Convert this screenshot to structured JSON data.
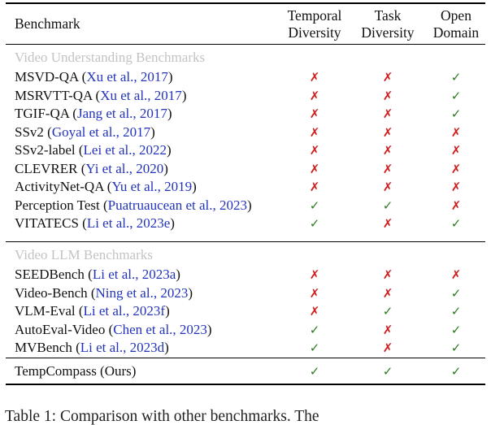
{
  "table": {
    "header": {
      "benchmark": "Benchmark",
      "col_temporal": {
        "line1": "Temporal",
        "line2": "Diversity"
      },
      "col_task": {
        "line1": "Task",
        "line2": "Diversity"
      },
      "col_open": {
        "line1": "Open",
        "line2": "Domain"
      }
    },
    "sections": [
      {
        "title": "Video Understanding Benchmarks",
        "rows": [
          {
            "prefix": "MSVD-QA (",
            "citation": "Xu et al., 2017",
            "suffix": ")",
            "marks": [
              "no",
              "no",
              "yes"
            ]
          },
          {
            "prefix": "MSRVTT-QA (",
            "citation": "Xu et al., 2017",
            "suffix": ")",
            "marks": [
              "no",
              "no",
              "yes"
            ]
          },
          {
            "prefix": "TGIF-QA (",
            "citation": "Jang et al., 2017",
            "suffix": ")",
            "marks": [
              "no",
              "no",
              "yes"
            ]
          },
          {
            "prefix": "SSv2 (",
            "citation": "Goyal et al., 2017",
            "suffix": ")",
            "marks": [
              "no",
              "no",
              "no"
            ]
          },
          {
            "prefix": "SSv2-label (",
            "citation": "Lei et al., 2022",
            "suffix": ")",
            "marks": [
              "no",
              "no",
              "no"
            ]
          },
          {
            "prefix": "CLEVRER (",
            "citation": "Yi et al., 2020",
            "suffix": ")",
            "marks": [
              "no",
              "no",
              "no"
            ]
          },
          {
            "prefix": "ActivityNet-QA (",
            "citation": "Yu et al., 2019",
            "suffix": ")",
            "marks": [
              "no",
              "no",
              "no"
            ]
          },
          {
            "prefix": "Perception Test (",
            "citation": "Puatruaucean et al., 2023",
            "suffix": ")",
            "marks": [
              "yes",
              "yes",
              "no"
            ]
          },
          {
            "prefix": "VITATECS (",
            "citation": "Li et al., 2023e",
            "suffix": ")",
            "marks": [
              "yes",
              "no",
              "yes"
            ]
          }
        ]
      },
      {
        "title": "Video LLM Benchmarks",
        "rows": [
          {
            "prefix": "SEEDBench (",
            "citation": "Li et al., 2023a",
            "suffix": ")",
            "marks": [
              "no",
              "no",
              "no"
            ]
          },
          {
            "prefix": "Video-Bench (",
            "citation": "Ning et al., 2023",
            "suffix": ")",
            "marks": [
              "no",
              "no",
              "yes"
            ]
          },
          {
            "prefix": "VLM-Eval (",
            "citation": "Li et al., 2023f",
            "suffix": ")",
            "marks": [
              "no",
              "yes",
              "yes"
            ]
          },
          {
            "prefix": "AutoEval-Video (",
            "citation": "Chen et al., 2023",
            "suffix": ")",
            "marks": [
              "yes",
              "no",
              "yes"
            ]
          },
          {
            "prefix": "MVBench (",
            "citation": "Li et al., 2023d",
            "suffix": ")",
            "marks": [
              "yes",
              "no",
              "yes"
            ]
          }
        ]
      }
    ],
    "final_row": {
      "label": "TempCompass (Ours)",
      "marks": [
        "yes",
        "yes",
        "yes"
      ]
    }
  },
  "glyphs": {
    "check": "✓",
    "cross": "✗"
  },
  "colors": {
    "citation_blue": "#2333bb",
    "section_gray": "#c3c3c3",
    "check_green": "#2a7d1e",
    "cross_red": "#cf1d1d"
  },
  "caption": "Table 1: Comparison with other benchmarks. The"
}
